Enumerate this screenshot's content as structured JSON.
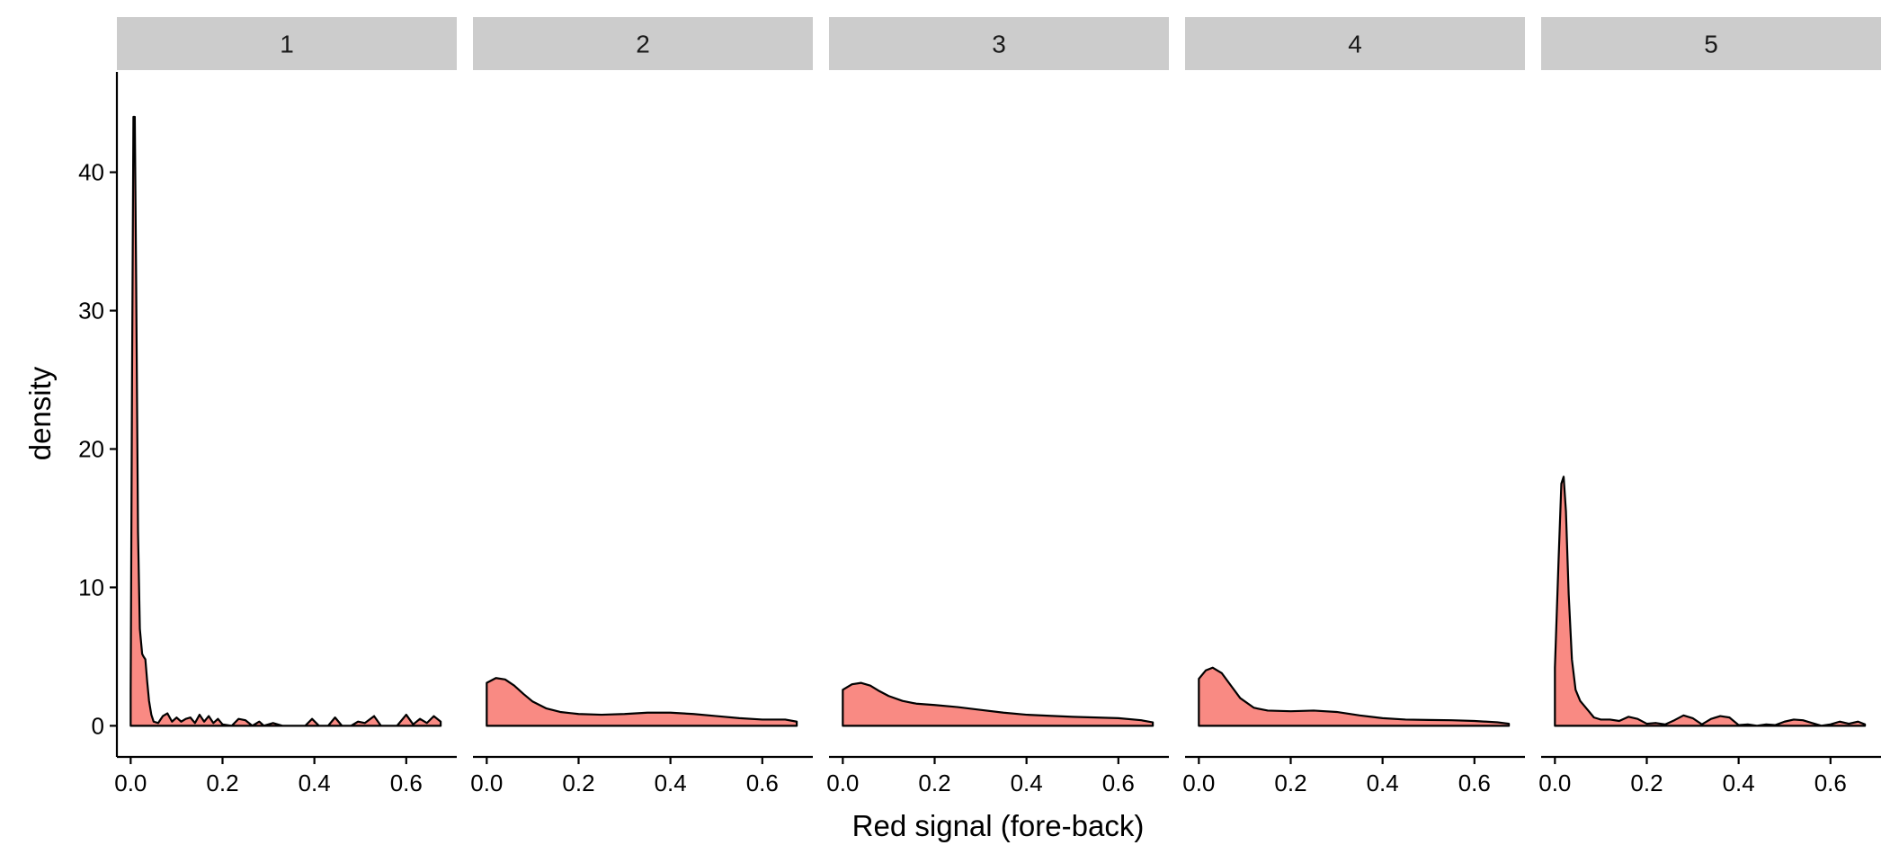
{
  "chart_data": {
    "type": "area",
    "xlabel": "Red signal (fore-back)",
    "ylabel": "density",
    "xlim": [
      -0.03,
      0.71
    ],
    "ylim": [
      -2.25,
      47.25
    ],
    "x_ticks": [
      0.0,
      0.2,
      0.4,
      0.6
    ],
    "x_tick_labels": [
      "0.0",
      "0.2",
      "0.4",
      "0.6"
    ],
    "y_ticks": [
      0,
      10,
      20,
      30,
      40
    ],
    "y_tick_labels": [
      "0",
      "10",
      "20",
      "30",
      "40"
    ],
    "fill_color": "#F8766D",
    "fill_opacity": 0.85,
    "line_color": "#000000",
    "strip_color": "#CCCCCC",
    "grid": false,
    "facets": [
      {
        "label": "1",
        "points": [
          [
            0.0,
            2.5
          ],
          [
            0.003,
            25
          ],
          [
            0.006,
            44
          ],
          [
            0.009,
            44
          ],
          [
            0.012,
            32
          ],
          [
            0.016,
            14
          ],
          [
            0.02,
            7
          ],
          [
            0.025,
            5.2
          ],
          [
            0.028,
            5
          ],
          [
            0.032,
            4.8
          ],
          [
            0.036,
            3.2
          ],
          [
            0.04,
            1.8
          ],
          [
            0.045,
            0.8
          ],
          [
            0.05,
            0.3
          ],
          [
            0.06,
            0.2
          ],
          [
            0.07,
            0.7
          ],
          [
            0.08,
            0.9
          ],
          [
            0.09,
            0.3
          ],
          [
            0.1,
            0.6
          ],
          [
            0.11,
            0.3
          ],
          [
            0.12,
            0.5
          ],
          [
            0.13,
            0.6
          ],
          [
            0.14,
            0.2
          ],
          [
            0.15,
            0.8
          ],
          [
            0.16,
            0.3
          ],
          [
            0.17,
            0.7
          ],
          [
            0.18,
            0.2
          ],
          [
            0.19,
            0.5
          ],
          [
            0.2,
            0.1
          ],
          [
            0.22,
            0.0
          ],
          [
            0.235,
            0.5
          ],
          [
            0.25,
            0.4
          ],
          [
            0.265,
            0.0
          ],
          [
            0.28,
            0.3
          ],
          [
            0.29,
            0.0
          ],
          [
            0.31,
            0.2
          ],
          [
            0.33,
            0.0
          ],
          [
            0.38,
            0.0
          ],
          [
            0.395,
            0.5
          ],
          [
            0.41,
            0.0
          ],
          [
            0.43,
            0.0
          ],
          [
            0.445,
            0.6
          ],
          [
            0.46,
            0.0
          ],
          [
            0.48,
            0.0
          ],
          [
            0.495,
            0.3
          ],
          [
            0.51,
            0.2
          ],
          [
            0.53,
            0.7
          ],
          [
            0.545,
            0.0
          ],
          [
            0.58,
            0.0
          ],
          [
            0.6,
            0.8
          ],
          [
            0.615,
            0.1
          ],
          [
            0.63,
            0.5
          ],
          [
            0.645,
            0.2
          ],
          [
            0.66,
            0.7
          ],
          [
            0.675,
            0.3
          ]
        ]
      },
      {
        "label": "2",
        "points": [
          [
            0.0,
            3.1
          ],
          [
            0.02,
            3.45
          ],
          [
            0.04,
            3.35
          ],
          [
            0.06,
            2.9
          ],
          [
            0.08,
            2.3
          ],
          [
            0.1,
            1.75
          ],
          [
            0.13,
            1.25
          ],
          [
            0.16,
            1.0
          ],
          [
            0.2,
            0.85
          ],
          [
            0.25,
            0.8
          ],
          [
            0.3,
            0.85
          ],
          [
            0.35,
            0.95
          ],
          [
            0.4,
            0.95
          ],
          [
            0.45,
            0.85
          ],
          [
            0.5,
            0.7
          ],
          [
            0.55,
            0.55
          ],
          [
            0.6,
            0.45
          ],
          [
            0.65,
            0.45
          ],
          [
            0.675,
            0.3
          ]
        ]
      },
      {
        "label": "3",
        "points": [
          [
            0.0,
            2.6
          ],
          [
            0.02,
            3.0
          ],
          [
            0.04,
            3.1
          ],
          [
            0.06,
            2.9
          ],
          [
            0.08,
            2.5
          ],
          [
            0.1,
            2.15
          ],
          [
            0.13,
            1.8
          ],
          [
            0.16,
            1.6
          ],
          [
            0.2,
            1.5
          ],
          [
            0.25,
            1.35
          ],
          [
            0.3,
            1.15
          ],
          [
            0.35,
            0.95
          ],
          [
            0.4,
            0.8
          ],
          [
            0.45,
            0.72
          ],
          [
            0.5,
            0.65
          ],
          [
            0.55,
            0.6
          ],
          [
            0.6,
            0.55
          ],
          [
            0.65,
            0.4
          ],
          [
            0.675,
            0.25
          ]
        ]
      },
      {
        "label": "4",
        "points": [
          [
            0.0,
            3.4
          ],
          [
            0.015,
            4.0
          ],
          [
            0.03,
            4.2
          ],
          [
            0.05,
            3.8
          ],
          [
            0.07,
            2.9
          ],
          [
            0.09,
            2.0
          ],
          [
            0.12,
            1.3
          ],
          [
            0.15,
            1.1
          ],
          [
            0.2,
            1.05
          ],
          [
            0.25,
            1.1
          ],
          [
            0.3,
            1.0
          ],
          [
            0.35,
            0.75
          ],
          [
            0.4,
            0.55
          ],
          [
            0.45,
            0.45
          ],
          [
            0.5,
            0.42
          ],
          [
            0.55,
            0.4
          ],
          [
            0.6,
            0.35
          ],
          [
            0.65,
            0.25
          ],
          [
            0.675,
            0.15
          ]
        ]
      },
      {
        "label": "5",
        "points": [
          [
            0.0,
            4.2
          ],
          [
            0.008,
            12
          ],
          [
            0.014,
            17.5
          ],
          [
            0.019,
            18
          ],
          [
            0.024,
            15.5
          ],
          [
            0.03,
            9.5
          ],
          [
            0.037,
            4.8
          ],
          [
            0.045,
            2.6
          ],
          [
            0.055,
            1.8
          ],
          [
            0.065,
            1.4
          ],
          [
            0.075,
            1.0
          ],
          [
            0.085,
            0.6
          ],
          [
            0.1,
            0.45
          ],
          [
            0.12,
            0.45
          ],
          [
            0.14,
            0.35
          ],
          [
            0.16,
            0.65
          ],
          [
            0.18,
            0.5
          ],
          [
            0.2,
            0.15
          ],
          [
            0.22,
            0.2
          ],
          [
            0.24,
            0.1
          ],
          [
            0.26,
            0.4
          ],
          [
            0.28,
            0.75
          ],
          [
            0.3,
            0.55
          ],
          [
            0.32,
            0.1
          ],
          [
            0.34,
            0.5
          ],
          [
            0.36,
            0.7
          ],
          [
            0.38,
            0.6
          ],
          [
            0.4,
            0.05
          ],
          [
            0.42,
            0.1
          ],
          [
            0.44,
            0.0
          ],
          [
            0.46,
            0.1
          ],
          [
            0.48,
            0.05
          ],
          [
            0.5,
            0.3
          ],
          [
            0.52,
            0.45
          ],
          [
            0.54,
            0.4
          ],
          [
            0.56,
            0.2
          ],
          [
            0.58,
            0.0
          ],
          [
            0.6,
            0.1
          ],
          [
            0.62,
            0.3
          ],
          [
            0.64,
            0.15
          ],
          [
            0.66,
            0.3
          ],
          [
            0.675,
            0.1
          ]
        ]
      }
    ]
  }
}
